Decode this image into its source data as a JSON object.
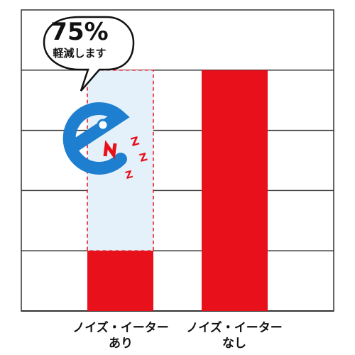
{
  "colors": {
    "bar": "#e8101a",
    "reduced_zone": "#e4f1fa",
    "reduced_border": "#e8101a",
    "grid": "#333333",
    "icon_blue": "#1e7fd0",
    "icon_red": "#e8101a"
  },
  "callout": {
    "value": "75%",
    "text": "軽減します"
  },
  "chart_data": {
    "type": "bar",
    "categories": [
      "ノイズ・イーターあり",
      "ノイズ・イーターなし"
    ],
    "category_lines": [
      [
        "ノイズ・イーター",
        "あり"
      ],
      [
        "ノイズ・イーター",
        "なし"
      ]
    ],
    "values": [
      25,
      100
    ],
    "reference_level": 100,
    "ylim": [
      0,
      125
    ],
    "y_gridlines": [
      25,
      50,
      75,
      100
    ],
    "grid": true,
    "title": "",
    "xlabel": "",
    "ylabel": ""
  },
  "icon": {
    "name": "noise-eater-icon",
    "letters": "ZZZ"
  }
}
